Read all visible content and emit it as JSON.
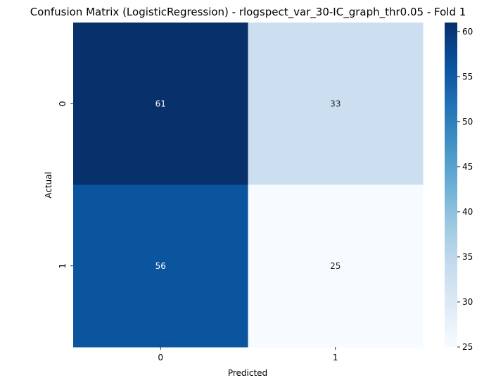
{
  "chart_data": {
    "type": "heatmap",
    "title": "Confusion Matrix (LogisticRegression) - rlogspect_var_30-IC_graph_thr0.05 - Fold 1",
    "xlabel": "Predicted",
    "ylabel": "Actual",
    "x_categories": [
      "0",
      "1"
    ],
    "y_categories": [
      "0",
      "1"
    ],
    "values": [
      [
        61,
        33
      ],
      [
        56,
        25
      ]
    ],
    "colormap": "Blues",
    "colorbar": {
      "min": 25,
      "max": 61,
      "ticks": [
        25,
        30,
        35,
        40,
        45,
        50,
        55,
        60
      ]
    },
    "annotate": true
  }
}
